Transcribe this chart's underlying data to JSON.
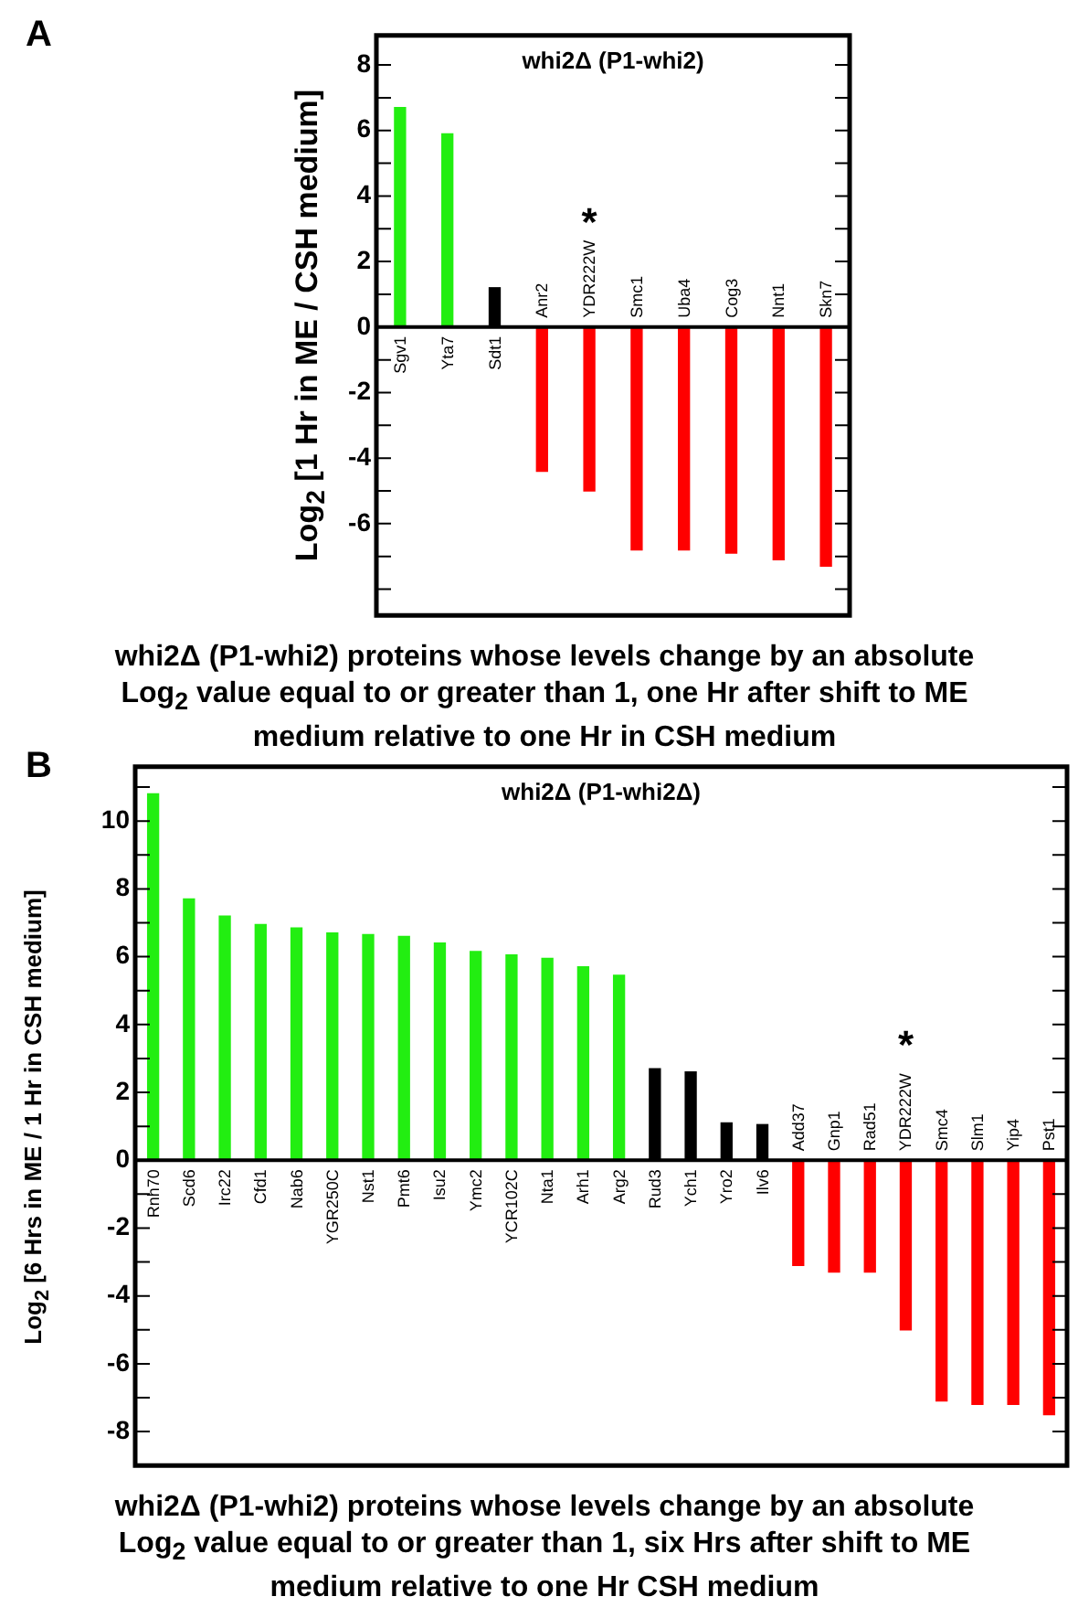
{
  "chart_data": [
    {
      "type": "bar",
      "title": "whi2Δ (P1-whi2)",
      "ylabel": "Log$_{2}$ [1 Hr in ME / CSH medium]",
      "annotations": [
        "A",
        "*",
        "whi2Δ (P1-whi2) proteins whose levels change by an absolute Log$_{2}$ value equal to or greater than 1, one Hr after shift to ME medium relative to one Hr in CSH medium"
      ],
      "categories": [
        "Sgv1",
        "Yta7",
        "Sdt1",
        "Anr2",
        "YDR222W",
        "Smc1",
        "Uba4",
        "Cog3",
        "Nnt1",
        "Skn7"
      ],
      "values": [
        6.7,
        5.9,
        1.2,
        -4.4,
        -5.0,
        -6.8,
        -6.8,
        -6.9,
        -7.1,
        -7.3
      ],
      "colors": [
        "#22ee11",
        "#22ee11",
        "#000000",
        "#ff0000",
        "#ff0000",
        "#ff0000",
        "#ff0000",
        "#ff0000",
        "#ff0000",
        "#ff0000"
      ],
      "ylim": [
        -8.8,
        8.9
      ],
      "yticks": [
        {
          "value": -8,
          "label": null
        },
        {
          "value": -7,
          "label": null
        },
        -6,
        {
          "value": -5,
          "label": null
        },
        -4,
        {
          "value": -3,
          "label": null
        },
        -2,
        {
          "value": -1,
          "label": null
        },
        0,
        {
          "value": 1,
          "label": null
        },
        2,
        {
          "value": 3,
          "label": null
        },
        4,
        {
          "value": 5,
          "label": null
        },
        6,
        {
          "value": 7,
          "label": null
        },
        8
      ]
    },
    {
      "type": "bar",
      "title": "whi2Δ (P1-whi2Δ)",
      "ylabel": "Log$_{2}$ [6 Hrs in ME / 1 Hr in CSH medium]",
      "annotations": [
        "B",
        "*",
        "whi2Δ (P1-whi2) proteins whose levels change by an absolute Log$_{2}$ value equal to or greater than 1, six Hrs after shift to ME medium relative to one Hr CSH medium"
      ],
      "categories": [
        "Rnh70",
        "Scd6",
        "Irc22",
        "Cfd1",
        "Nab6",
        "YGR250C",
        "Nst1",
        "Pmt6",
        "Isu2",
        "Ymc2",
        "YCR102C",
        "Nta1",
        "Arh1",
        "Arg2",
        "Rud3",
        "Ych1",
        "Yro2",
        "Ilv6",
        "Add37",
        "Gnp1",
        "Rad51",
        "YDR222W",
        "Smc4",
        "Slm1",
        "Yip4",
        "Pst1"
      ],
      "values": [
        10.8,
        7.7,
        7.2,
        6.95,
        6.85,
        6.7,
        6.65,
        6.6,
        6.4,
        6.15,
        6.05,
        5.95,
        5.7,
        5.45,
        2.7,
        2.6,
        1.1,
        1.05,
        -3.1,
        -3.3,
        -3.3,
        -5.0,
        -7.1,
        -7.2,
        -7.2,
        -7.5
      ],
      "colors": [
        "#22ee11",
        "#22ee11",
        "#22ee11",
        "#22ee11",
        "#22ee11",
        "#22ee11",
        "#22ee11",
        "#22ee11",
        "#22ee11",
        "#22ee11",
        "#22ee11",
        "#22ee11",
        "#22ee11",
        "#22ee11",
        "#000000",
        "#000000",
        "#000000",
        "#000000",
        "#ff0000",
        "#ff0000",
        "#ff0000",
        "#ff0000",
        "#ff0000",
        "#ff0000",
        "#ff0000",
        "#ff0000"
      ],
      "ylim": [
        -9,
        11.6
      ],
      "yticks": [
        -8,
        {
          "value": -7,
          "label": null
        },
        -6,
        {
          "value": -5,
          "label": null
        },
        -4,
        {
          "value": -3,
          "label": null
        },
        -2,
        {
          "value": -1,
          "label": null
        },
        0,
        {
          "value": 1,
          "label": null
        },
        2,
        {
          "value": 3,
          "label": null
        },
        4,
        {
          "value": 5,
          "label": null
        },
        6,
        {
          "value": 7,
          "label": null
        },
        8,
        {
          "value": 9,
          "label": null
        },
        10,
        {
          "value": 11,
          "label": null
        }
      ]
    }
  ]
}
